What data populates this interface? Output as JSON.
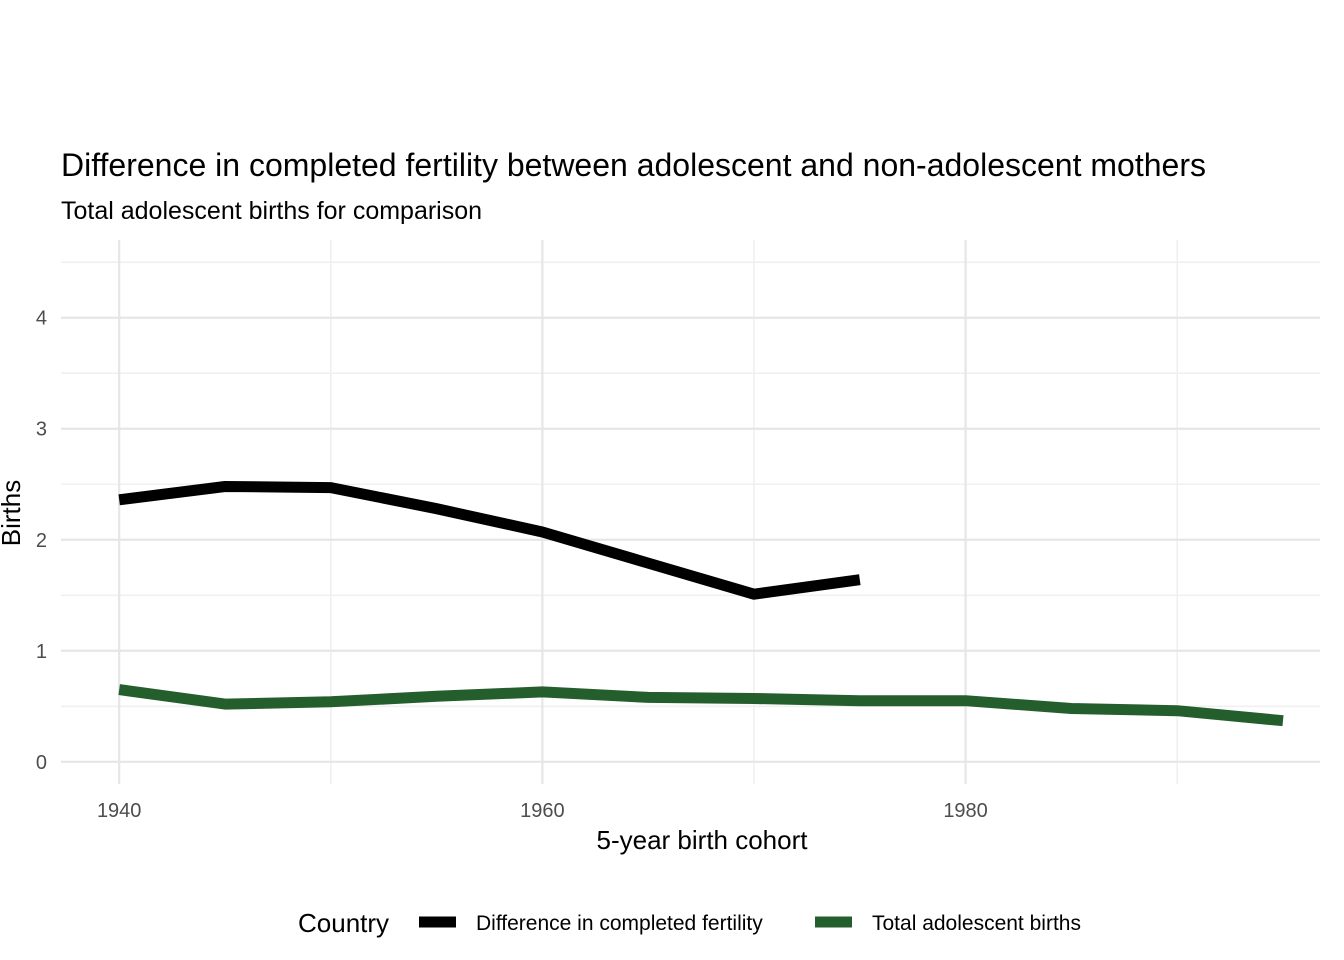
{
  "chart_data": {
    "type": "line",
    "title": "Difference in completed fertility between adolescent and non-adolescent mothers",
    "subtitle": "Total adolescent births for comparison",
    "xlabel": "5-year birth cohort",
    "ylabel": "Births",
    "xlim": [
      1937.25,
      1996.75
    ],
    "ylim": [
      -0.2,
      4.7
    ],
    "x_ticks": [
      1940,
      1960,
      1980
    ],
    "x_minor_ticks": [
      1950,
      1970,
      1990
    ],
    "y_ticks": [
      0,
      1,
      2,
      3,
      4
    ],
    "y_minor_ticks": [
      0.5,
      1.5,
      2.5,
      3.5,
      4.5
    ],
    "grid": true,
    "legend": {
      "title": "Country",
      "position": "bottom"
    },
    "series": [
      {
        "name": "Difference in completed fertility",
        "color": "#000000",
        "x": [
          1940,
          1945,
          1950,
          1955,
          1960,
          1965,
          1970,
          1975
        ],
        "y": [
          2.36,
          2.48,
          2.47,
          2.28,
          2.07,
          1.79,
          1.51,
          1.64
        ]
      },
      {
        "name": "Total adolescent births",
        "color": "#255e2d",
        "x": [
          1940,
          1945,
          1950,
          1955,
          1960,
          1965,
          1970,
          1975,
          1980,
          1985,
          1990,
          1995
        ],
        "y": [
          0.65,
          0.52,
          0.54,
          0.59,
          0.63,
          0.58,
          0.57,
          0.55,
          0.55,
          0.48,
          0.46,
          0.37
        ]
      }
    ]
  }
}
